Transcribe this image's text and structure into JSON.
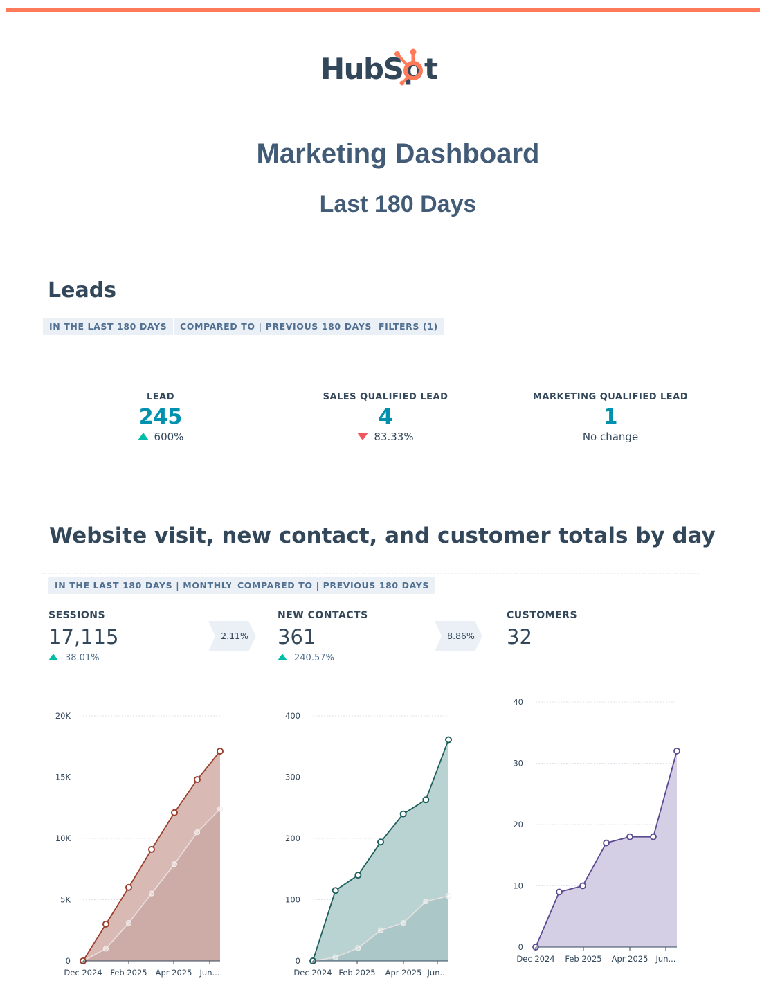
{
  "brand": {
    "logo_text": "HubSpot",
    "accent": "#ff7a59"
  },
  "header": {
    "title": "Marketing Dashboard",
    "subtitle": "Last 180 Days"
  },
  "leads": {
    "title": "Leads",
    "filters": [
      "IN THE LAST 180 DAYS",
      "COMPARED TO | PREVIOUS 180 DAYS",
      "FILTERS (1)"
    ],
    "kpis": [
      {
        "label": "LEAD",
        "value": "245",
        "change": "600%",
        "direction": "up"
      },
      {
        "label": "SALES QUALIFIED LEAD",
        "value": "4",
        "change": "83.33%",
        "direction": "down"
      },
      {
        "label": "MARKETING QUALIFIED LEAD",
        "value": "1",
        "change": "No change",
        "direction": "none"
      }
    ]
  },
  "funnel": {
    "title": "Website visit, new contact, and customer totals by day",
    "filters": [
      "IN THE LAST 180 DAYS | MONTHLY",
      "COMPARED TO | PREVIOUS 180 DAYS"
    ],
    "metrics": [
      {
        "label": "SESSIONS",
        "value": "17,115",
        "change": "38.01%"
      },
      {
        "label": "NEW CONTACTS",
        "value": "361",
        "change": "240.57%"
      },
      {
        "label": "CUSTOMERS",
        "value": "32",
        "change": ""
      }
    ],
    "conversion_rates": [
      "2.11%",
      "8.86%"
    ]
  },
  "chart_data": [
    {
      "type": "area",
      "x_tick_labels": [
        "Dec 2024",
        "Feb 2025",
        "Apr 2025",
        "Jun..."
      ],
      "y_tick_labels": [
        "0",
        "5K",
        "10K",
        "15K",
        "20K"
      ],
      "ylim": [
        0,
        20000
      ],
      "color": "#9b3f2e",
      "fill": "#d9b9b3",
      "compare_fill": "#c9a8a2",
      "series": [
        {
          "values": [
            0,
            3000,
            6000,
            9100,
            12100,
            14800,
            17115
          ]
        },
        {
          "values": [
            0,
            1000,
            3100,
            5500,
            7900,
            10500,
            12400
          ]
        }
      ]
    },
    {
      "type": "area",
      "x_tick_labels": [
        "Dec 2024",
        "Feb 2025",
        "Apr 2025",
        "Jun..."
      ],
      "y_tick_labels": [
        "0",
        "100",
        "200",
        "300",
        "400"
      ],
      "ylim": [
        0,
        400
      ],
      "color": "#1d5f5c",
      "fill": "#b9d3d3",
      "compare_fill": "#a7c4c6",
      "series": [
        {
          "values": [
            0,
            115,
            140,
            194,
            240,
            263,
            361
          ]
        },
        {
          "values": [
            0,
            6,
            21,
            50,
            62,
            97,
            106
          ]
        }
      ]
    },
    {
      "type": "area",
      "x_tick_labels": [
        "Dec 2024",
        "Feb 2025",
        "Apr 2025",
        "Jun..."
      ],
      "y_tick_labels": [
        "0",
        "10",
        "20",
        "30",
        "40"
      ],
      "ylim": [
        0,
        40
      ],
      "color": "#5c4a91",
      "fill": "#d4cfe4",
      "compare_fill": "",
      "series": [
        {
          "values": [
            0,
            9,
            10,
            17,
            18,
            18,
            32
          ]
        }
      ]
    }
  ]
}
